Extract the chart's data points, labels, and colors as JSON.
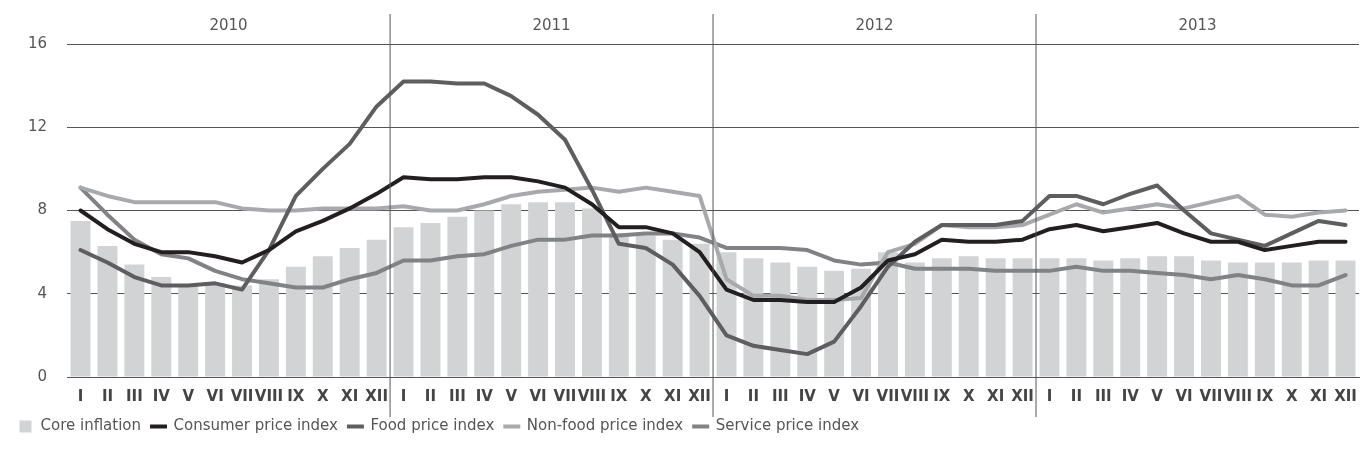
{
  "chart_data": {
    "type": "bar",
    "annotations": [
      "2010",
      "2011",
      "2012",
      "2013"
    ],
    "categories": [
      "I",
      "II",
      "III",
      "IV",
      "V",
      "VI",
      "VII",
      "VIII",
      "IX",
      "X",
      "XI",
      "XII",
      "I",
      "II",
      "III",
      "IV",
      "V",
      "VI",
      "VII",
      "VIII",
      "IX",
      "X",
      "XI",
      "XII",
      "I",
      "II",
      "III",
      "IV",
      "V",
      "VI",
      "VII",
      "VIII",
      "IX",
      "X",
      "XI",
      "XII",
      "I",
      "II",
      "III",
      "IV",
      "V",
      "VI",
      "VII",
      "VIII",
      "IX",
      "X",
      "XI",
      "XII"
    ],
    "series": [
      {
        "name": "Core inflation",
        "color": "#d1d3d4",
        "values": [
          7.5,
          6.3,
          5.4,
          4.8,
          4.4,
          4.5,
          4.4,
          4.7,
          5.3,
          5.8,
          6.2,
          6.6,
          7.2,
          7.4,
          7.7,
          8.0,
          8.3,
          8.4,
          8.4,
          8.1,
          6.9,
          6.8,
          6.6,
          6.4,
          6.0,
          5.7,
          5.5,
          5.3,
          5.1,
          5.2,
          6.0,
          5.5,
          5.7,
          5.8,
          5.7,
          5.7,
          5.7,
          5.7,
          5.6,
          5.7,
          5.8,
          5.8,
          5.6,
          5.5,
          5.5,
          5.5,
          5.6,
          5.6
        ]
      },
      {
        "name": "Consumer price index",
        "type": "line",
        "color": "#231f20",
        "values": [
          8.0,
          7.1,
          6.4,
          6.0,
          6.0,
          5.8,
          5.5,
          6.1,
          7.0,
          7.5,
          8.1,
          8.8,
          9.6,
          9.5,
          9.5,
          9.6,
          9.6,
          9.4,
          9.1,
          8.3,
          7.2,
          7.2,
          6.9,
          6.0,
          4.2,
          3.7,
          3.7,
          3.6,
          3.6,
          4.3,
          5.6,
          5.9,
          6.6,
          6.5,
          6.5,
          6.6,
          7.1,
          7.3,
          7.0,
          7.2,
          7.4,
          6.9,
          6.5,
          6.5,
          6.1,
          6.3,
          6.5,
          6.5
        ]
      },
      {
        "name": "Food price index",
        "type": "line",
        "color": "#5e5e60",
        "values": [
          6.1,
          5.5,
          4.8,
          4.4,
          4.4,
          4.5,
          4.2,
          6.1,
          8.7,
          10.0,
          11.2,
          13.0,
          14.2,
          14.2,
          14.1,
          14.1,
          13.5,
          12.6,
          11.4,
          9.0,
          6.4,
          6.2,
          5.4,
          3.9,
          2.0,
          1.5,
          1.3,
          1.1,
          1.7,
          3.4,
          5.3,
          6.5,
          7.3,
          7.3,
          7.3,
          7.5,
          8.7,
          8.7,
          8.3,
          8.8,
          9.2,
          8.0,
          6.9,
          6.6,
          6.3,
          6.9,
          7.5,
          7.3
        ]
      },
      {
        "name": "Non-food price index",
        "type": "line",
        "color": "#a7a9ac",
        "values": [
          9.1,
          8.7,
          8.4,
          8.4,
          8.4,
          8.4,
          8.1,
          8.0,
          8.0,
          8.1,
          8.1,
          8.1,
          8.2,
          8.0,
          8.0,
          8.3,
          8.7,
          8.9,
          9.0,
          9.1,
          8.9,
          9.1,
          8.9,
          8.7,
          4.7,
          3.9,
          3.9,
          3.7,
          3.7,
          3.8,
          6.0,
          6.4,
          7.3,
          7.2,
          7.2,
          7.3,
          7.8,
          8.3,
          7.9,
          8.1,
          8.3,
          8.1,
          8.4,
          8.7,
          7.8,
          7.7,
          7.9,
          8.0
        ]
      },
      {
        "name": "Service price index",
        "type": "line",
        "color": "#808285",
        "values": [
          9.1,
          7.8,
          6.6,
          5.9,
          5.7,
          5.1,
          4.7,
          4.5,
          4.3,
          4.3,
          4.7,
          5.0,
          5.6,
          5.6,
          5.8,
          5.9,
          6.3,
          6.6,
          6.6,
          6.8,
          6.8,
          6.9,
          6.9,
          6.7,
          6.2,
          6.2,
          6.2,
          6.1,
          5.6,
          5.4,
          5.5,
          5.2,
          5.2,
          5.2,
          5.1,
          5.1,
          5.1,
          5.3,
          5.1,
          5.1,
          5.0,
          4.9,
          4.7,
          4.9,
          4.7,
          4.4,
          4.4,
          4.9
        ]
      }
    ],
    "ylim": [
      0,
      16
    ],
    "yticks": [
      0,
      4,
      8,
      12,
      16
    ],
    "grid": "y",
    "legend": "bottom left"
  }
}
